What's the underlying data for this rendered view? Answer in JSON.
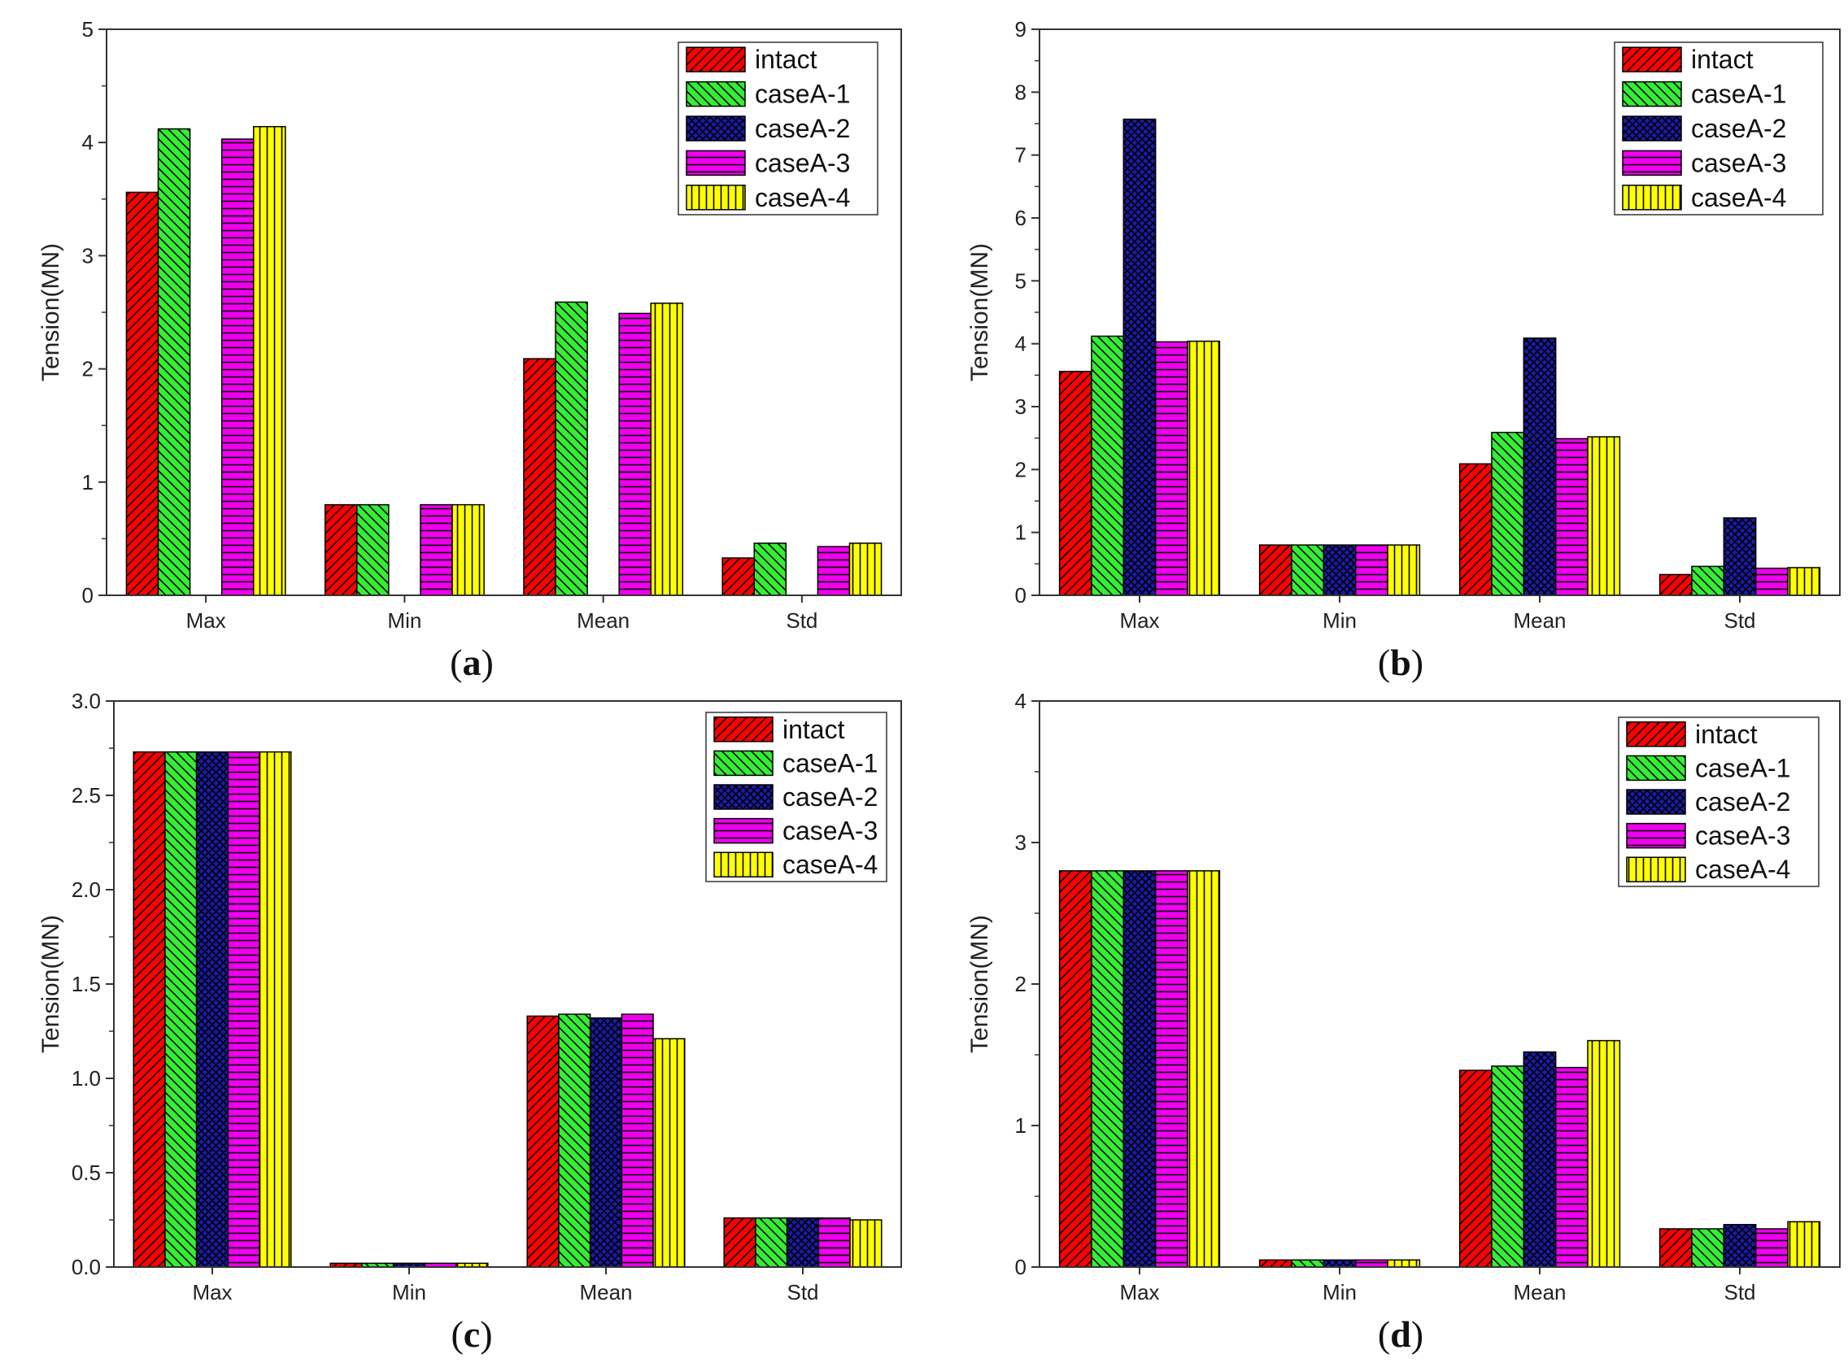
{
  "series_names": [
    "intact",
    "caseA-1",
    "caseA-2",
    "caseA-3",
    "caseA-4"
  ],
  "series_colors": [
    "#ff0000",
    "#33ee33",
    "#1a1aa8",
    "#ee00ee",
    "#ffff00"
  ],
  "series_patterns": [
    "diag-right",
    "diag-left",
    "crosshatch",
    "horizontal",
    "vertical"
  ],
  "chart_data": [
    {
      "type": "bar",
      "caption_letter": "a",
      "categories": [
        "Max",
        "Min",
        "Mean",
        "Std"
      ],
      "ylabel": "Tension(MN)",
      "xlabel": "",
      "ylim": [
        0,
        5
      ],
      "yticks": [
        "0",
        "1",
        "2",
        "3",
        "4",
        "5"
      ],
      "series": [
        {
          "name": "intact",
          "values": [
            3.56,
            0.8,
            2.09,
            0.33
          ]
        },
        {
          "name": "caseA-1",
          "values": [
            4.12,
            0.8,
            2.59,
            0.46
          ]
        },
        {
          "name": "caseA-2",
          "values": [
            0,
            0,
            0,
            0
          ]
        },
        {
          "name": "caseA-3",
          "values": [
            4.03,
            0.8,
            2.49,
            0.43
          ]
        },
        {
          "name": "caseA-4",
          "values": [
            4.14,
            0.8,
            2.58,
            0.46
          ]
        }
      ],
      "legend": "top-right"
    },
    {
      "type": "bar",
      "caption_letter": "b",
      "categories": [
        "Max",
        "Min",
        "Mean",
        "Std"
      ],
      "ylabel": "Tension(MN)",
      "xlabel": "",
      "ylim": [
        0,
        9
      ],
      "yticks": [
        "0",
        "1",
        "2",
        "3",
        "4",
        "5",
        "6",
        "7",
        "8",
        "9"
      ],
      "series": [
        {
          "name": "intact",
          "values": [
            3.56,
            0.8,
            2.09,
            0.33
          ]
        },
        {
          "name": "caseA-1",
          "values": [
            4.12,
            0.8,
            2.59,
            0.46
          ]
        },
        {
          "name": "caseA-2",
          "values": [
            7.57,
            0.8,
            4.09,
            1.23
          ]
        },
        {
          "name": "caseA-3",
          "values": [
            4.03,
            0.8,
            2.49,
            0.43
          ]
        },
        {
          "name": "caseA-4",
          "values": [
            4.04,
            0.8,
            2.52,
            0.44
          ]
        }
      ],
      "legend": "top-right"
    },
    {
      "type": "bar",
      "caption_letter": "c",
      "categories": [
        "Max",
        "Min",
        "Mean",
        "Std"
      ],
      "ylabel": "Tension(MN)",
      "xlabel": "",
      "ylim": [
        0,
        3.0
      ],
      "yticks": [
        "0.0",
        "0.5",
        "1.0",
        "1.5",
        "2.0",
        "2.5",
        "3.0"
      ],
      "series": [
        {
          "name": "intact",
          "values": [
            2.73,
            0.02,
            1.33,
            0.26
          ]
        },
        {
          "name": "caseA-1",
          "values": [
            2.73,
            0.02,
            1.34,
            0.26
          ]
        },
        {
          "name": "caseA-2",
          "values": [
            2.73,
            0.02,
            1.32,
            0.26
          ]
        },
        {
          "name": "caseA-3",
          "values": [
            2.73,
            0.02,
            1.34,
            0.26
          ]
        },
        {
          "name": "caseA-4",
          "values": [
            2.73,
            0.02,
            1.21,
            0.25
          ]
        }
      ],
      "legend": "top-right"
    },
    {
      "type": "bar",
      "caption_letter": "d",
      "categories": [
        "Max",
        "Min",
        "Mean",
        "Std"
      ],
      "ylabel": "Tension(MN)",
      "xlabel": "",
      "ylim": [
        0,
        4
      ],
      "yticks": [
        "0",
        "1",
        "2",
        "3",
        "4"
      ],
      "series": [
        {
          "name": "intact",
          "values": [
            2.8,
            0.05,
            1.39,
            0.27
          ]
        },
        {
          "name": "caseA-1",
          "values": [
            2.8,
            0.05,
            1.42,
            0.27
          ]
        },
        {
          "name": "caseA-2",
          "values": [
            2.8,
            0.05,
            1.52,
            0.3
          ]
        },
        {
          "name": "caseA-3",
          "values": [
            2.8,
            0.05,
            1.41,
            0.27
          ]
        },
        {
          "name": "caseA-4",
          "values": [
            2.8,
            0.05,
            1.6,
            0.32
          ]
        }
      ],
      "legend": "top-right"
    }
  ]
}
